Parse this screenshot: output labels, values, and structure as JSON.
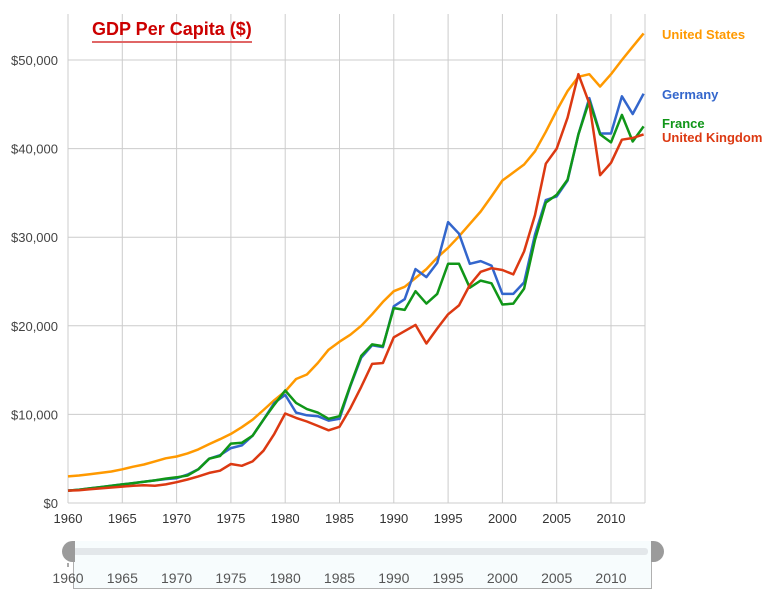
{
  "chart_data": {
    "type": "line",
    "title": "GDP Per Capita ($)",
    "xlabel": "",
    "ylabel": "",
    "xlim": [
      1960,
      2013
    ],
    "ylim": [
      0,
      50000
    ],
    "grid": true,
    "legend": "right",
    "x_ticks": [
      "1960",
      "1965",
      "1970",
      "1975",
      "1980",
      "1985",
      "1990",
      "1995",
      "2000",
      "2005",
      "2010"
    ],
    "y_ticks": [
      "$0",
      "$10,000",
      "$20,000",
      "$30,000",
      "$40,000",
      "$50,000"
    ],
    "x": [
      1960,
      1961,
      1962,
      1963,
      1964,
      1965,
      1966,
      1967,
      1968,
      1969,
      1970,
      1971,
      1972,
      1973,
      1974,
      1975,
      1976,
      1977,
      1978,
      1979,
      1980,
      1981,
      1982,
      1983,
      1984,
      1985,
      1986,
      1987,
      1988,
      1989,
      1990,
      1991,
      1992,
      1993,
      1994,
      1995,
      1996,
      1997,
      1998,
      1999,
      2000,
      2001,
      2002,
      2003,
      2004,
      2005,
      2006,
      2007,
      2008,
      2009,
      2010,
      2011,
      2012,
      2013
    ],
    "series": [
      {
        "name": "United States",
        "color": "#ff9900",
        "values": [
          3000,
          3100,
          3250,
          3400,
          3550,
          3800,
          4100,
          4350,
          4700,
          5050,
          5250,
          5600,
          6050,
          6650,
          7200,
          7800,
          8550,
          9400,
          10500,
          11600,
          12600,
          14000,
          14500,
          15800,
          17300,
          18200,
          19000,
          20000,
          21300,
          22700,
          23900,
          24400,
          25400,
          26400,
          27700,
          28800,
          30100,
          31500,
          32900,
          34600,
          36400,
          37300,
          38200,
          39700,
          41900,
          44300,
          46500,
          48100,
          48400,
          47000,
          48400,
          50000,
          51500,
          53000
        ]
      },
      {
        "name": "Germany",
        "color": "#3366cc",
        "values": [
          1400,
          1500,
          1650,
          1800,
          1950,
          2100,
          2250,
          2400,
          2550,
          2700,
          2800,
          3200,
          3800,
          5000,
          5400,
          6200,
          6500,
          7600,
          9400,
          11300,
          12200,
          10200,
          9900,
          9800,
          9300,
          9500,
          13200,
          16400,
          17800,
          17600,
          22200,
          23000,
          26400,
          25500,
          27100,
          31700,
          30400,
          27000,
          27300,
          26800,
          23600,
          23600,
          24900,
          30300,
          34200,
          34600,
          36400,
          41600,
          45700,
          41700,
          41700,
          45900,
          43900,
          46200
        ]
      },
      {
        "name": "France",
        "color": "#109618",
        "values": [
          1400,
          1500,
          1650,
          1800,
          1950,
          2100,
          2250,
          2400,
          2550,
          2750,
          2900,
          3100,
          3800,
          5000,
          5300,
          6700,
          6800,
          7600,
          9400,
          11100,
          12700,
          11300,
          10600,
          10200,
          9500,
          9800,
          13300,
          16600,
          17900,
          17700,
          22000,
          21800,
          23900,
          22500,
          23600,
          27000,
          27000,
          24300,
          25100,
          24800,
          22400,
          22500,
          24200,
          29700,
          33900,
          34800,
          36500,
          41600,
          45400,
          41600,
          40700,
          43800,
          40800,
          42500
        ]
      },
      {
        "name": "United Kingdom",
        "color": "#dc3912",
        "values": [
          1400,
          1450,
          1550,
          1650,
          1750,
          1850,
          1950,
          2000,
          1950,
          2100,
          2350,
          2650,
          3000,
          3400,
          3650,
          4400,
          4200,
          4700,
          5900,
          7800,
          10100,
          9600,
          9200,
          8700,
          8200,
          8600,
          10700,
          13100,
          15700,
          15800,
          18700,
          19400,
          20100,
          18000,
          19700,
          21300,
          22300,
          24600,
          26100,
          26500,
          26300,
          25800,
          28400,
          32500,
          38300,
          40000,
          43500,
          48400,
          45100,
          37000,
          38400,
          41000,
          41200,
          41600
        ]
      }
    ]
  },
  "slider": {
    "range_start": "1960",
    "range_end": "2013",
    "tick_labels": [
      "1960",
      "1965",
      "1970",
      "1975",
      "1980",
      "1985",
      "1990",
      "1995",
      "2000",
      "2005",
      "2010"
    ]
  }
}
